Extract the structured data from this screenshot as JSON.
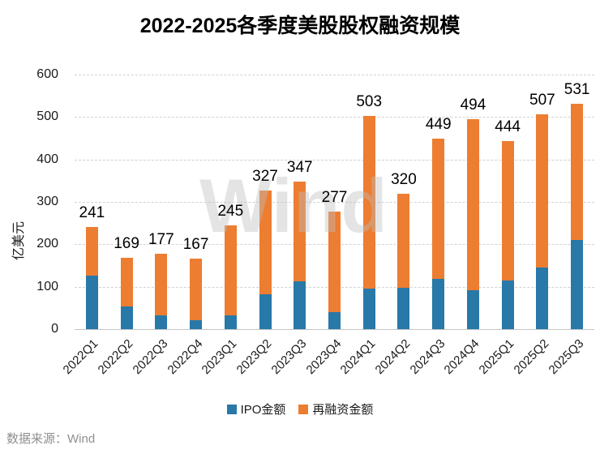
{
  "title": "2022-2025各季度美股股权融资规模",
  "watermark": "Wind",
  "footer": {
    "source_label": "数据来源：Wind"
  },
  "chart_data": {
    "type": "bar",
    "stacked": true,
    "title": "2022-2025各季度美股股权融资规模",
    "xlabel": "",
    "ylabel": "亿美元",
    "ylim": [
      0,
      600
    ],
    "yticks": [
      0,
      100,
      200,
      300,
      400,
      500,
      600
    ],
    "grid": "horizontal-dashed",
    "legend_position": "bottom",
    "categories": [
      "2022Q1",
      "2022Q2",
      "2022Q3",
      "2022Q4",
      "2023Q1",
      "2023Q2",
      "2023Q3",
      "2023Q4",
      "2024Q1",
      "2024Q2",
      "2024Q3",
      "2024Q4",
      "2025Q1",
      "2025Q2",
      "2025Q3"
    ],
    "series": [
      {
        "name": "IPO金额",
        "color": "#2878a8",
        "values": [
          127,
          54,
          33,
          22,
          33,
          82,
          113,
          40,
          96,
          98,
          119,
          92,
          114,
          145,
          210
        ]
      },
      {
        "name": "再融资金额",
        "color": "#ed7d31",
        "values": [
          114,
          115,
          144,
          145,
          212,
          245,
          234,
          237,
          407,
          222,
          330,
          402,
          330,
          362,
          321
        ]
      }
    ],
    "totals": [
      241,
      169,
      177,
      167,
      245,
      327,
      347,
      277,
      503,
      320,
      449,
      494,
      444,
      507,
      531
    ]
  }
}
